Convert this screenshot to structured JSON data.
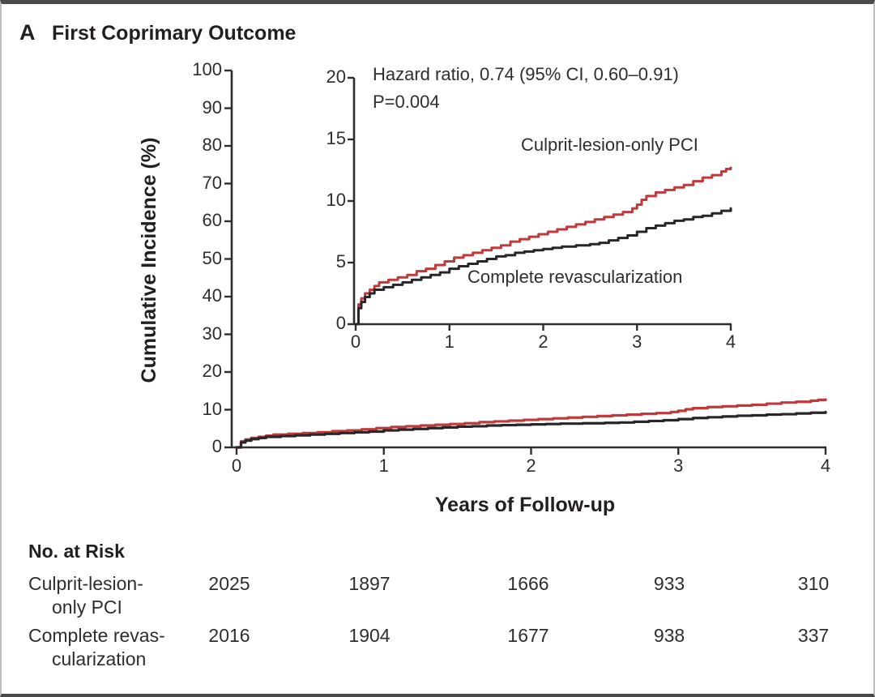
{
  "header": {
    "panel_letter": "A",
    "title": "First Coprimary Outcome"
  },
  "chart_data": {
    "type": "line",
    "subtype": "step-cumulative-incidence-with-inset",
    "title": "First Coprimary Outcome",
    "xlabel": "Years of Follow-up",
    "ylabel": "Cumulative Incidence (%)",
    "xlim": [
      0,
      4
    ],
    "x_ticks": [
      0,
      1,
      2,
      3,
      4
    ],
    "main_axis": {
      "ylim": [
        0,
        100
      ],
      "y_ticks": [
        0,
        10,
        20,
        30,
        40,
        50,
        60,
        70,
        80,
        90,
        100
      ],
      "grid": false
    },
    "inset_axis": {
      "ylim": [
        0,
        20
      ],
      "y_ticks": [
        0,
        5,
        10,
        15,
        20
      ],
      "grid": false
    },
    "annotations": {
      "hazard_ratio": "Hazard ratio, 0.74 (95% CI, 0.60–0.91)",
      "p_value": "P=0.004"
    },
    "legend_position": "inline-labels",
    "series": [
      {
        "name": "Culprit-lesion-only PCI",
        "color": "#c0393b",
        "x": [
          0,
          0.03,
          0.06,
          0.1,
          0.15,
          0.2,
          0.25,
          0.35,
          0.45,
          0.55,
          0.65,
          0.75,
          0.85,
          0.95,
          1.05,
          1.15,
          1.25,
          1.35,
          1.45,
          1.55,
          1.65,
          1.75,
          1.85,
          1.95,
          2.05,
          2.15,
          2.25,
          2.35,
          2.45,
          2.55,
          2.65,
          2.75,
          2.85,
          2.95,
          3.0,
          3.05,
          3.1,
          3.2,
          3.3,
          3.4,
          3.5,
          3.6,
          3.7,
          3.8,
          3.9,
          3.95,
          4.0
        ],
        "y": [
          0,
          1.6,
          2.1,
          2.5,
          2.8,
          3.1,
          3.4,
          3.6,
          3.8,
          4.0,
          4.3,
          4.5,
          4.8,
          5.1,
          5.4,
          5.6,
          5.8,
          6.0,
          6.2,
          6.4,
          6.7,
          6.9,
          7.1,
          7.3,
          7.5,
          7.7,
          7.9,
          8.1,
          8.3,
          8.5,
          8.7,
          8.9,
          9.1,
          9.4,
          9.7,
          10.1,
          10.4,
          10.7,
          10.9,
          11.1,
          11.3,
          11.6,
          11.9,
          12.1,
          12.4,
          12.6,
          12.7
        ]
      },
      {
        "name": "Complete revascularization",
        "color": "#29262a",
        "x": [
          0,
          0.03,
          0.06,
          0.1,
          0.15,
          0.2,
          0.3,
          0.4,
          0.5,
          0.6,
          0.7,
          0.8,
          0.9,
          1.0,
          1.1,
          1.2,
          1.3,
          1.4,
          1.5,
          1.6,
          1.7,
          1.8,
          1.9,
          2.0,
          2.1,
          2.2,
          2.35,
          2.5,
          2.6,
          2.7,
          2.8,
          2.9,
          3.0,
          3.1,
          3.2,
          3.3,
          3.4,
          3.5,
          3.6,
          3.7,
          3.8,
          3.9,
          4.0
        ],
        "y": [
          0,
          1.3,
          1.8,
          2.2,
          2.5,
          2.8,
          3.0,
          3.2,
          3.4,
          3.6,
          3.8,
          4.0,
          4.2,
          4.5,
          4.7,
          4.9,
          5.1,
          5.3,
          5.5,
          5.6,
          5.8,
          5.9,
          6.0,
          6.1,
          6.2,
          6.3,
          6.4,
          6.5,
          6.6,
          6.8,
          7.0,
          7.2,
          7.5,
          7.8,
          8.0,
          8.2,
          8.4,
          8.5,
          8.7,
          8.8,
          9.0,
          9.2,
          9.4
        ]
      }
    ]
  },
  "risk_table": {
    "header": "No. at Risk",
    "time_points": [
      0,
      1,
      2,
      3,
      4
    ],
    "rows": [
      {
        "label_lines": [
          "Culprit-lesion-",
          "only PCI"
        ],
        "counts": [
          "2025",
          "1897",
          "1666",
          "933",
          "310"
        ]
      },
      {
        "label_lines": [
          "Complete revas-",
          "cularization"
        ],
        "counts": [
          "2016",
          "1904",
          "1677",
          "938",
          "337"
        ]
      }
    ]
  },
  "colors": {
    "culprit_red": "#c0393b",
    "complete_black": "#29262a",
    "axis": "#2f2d2e"
  }
}
